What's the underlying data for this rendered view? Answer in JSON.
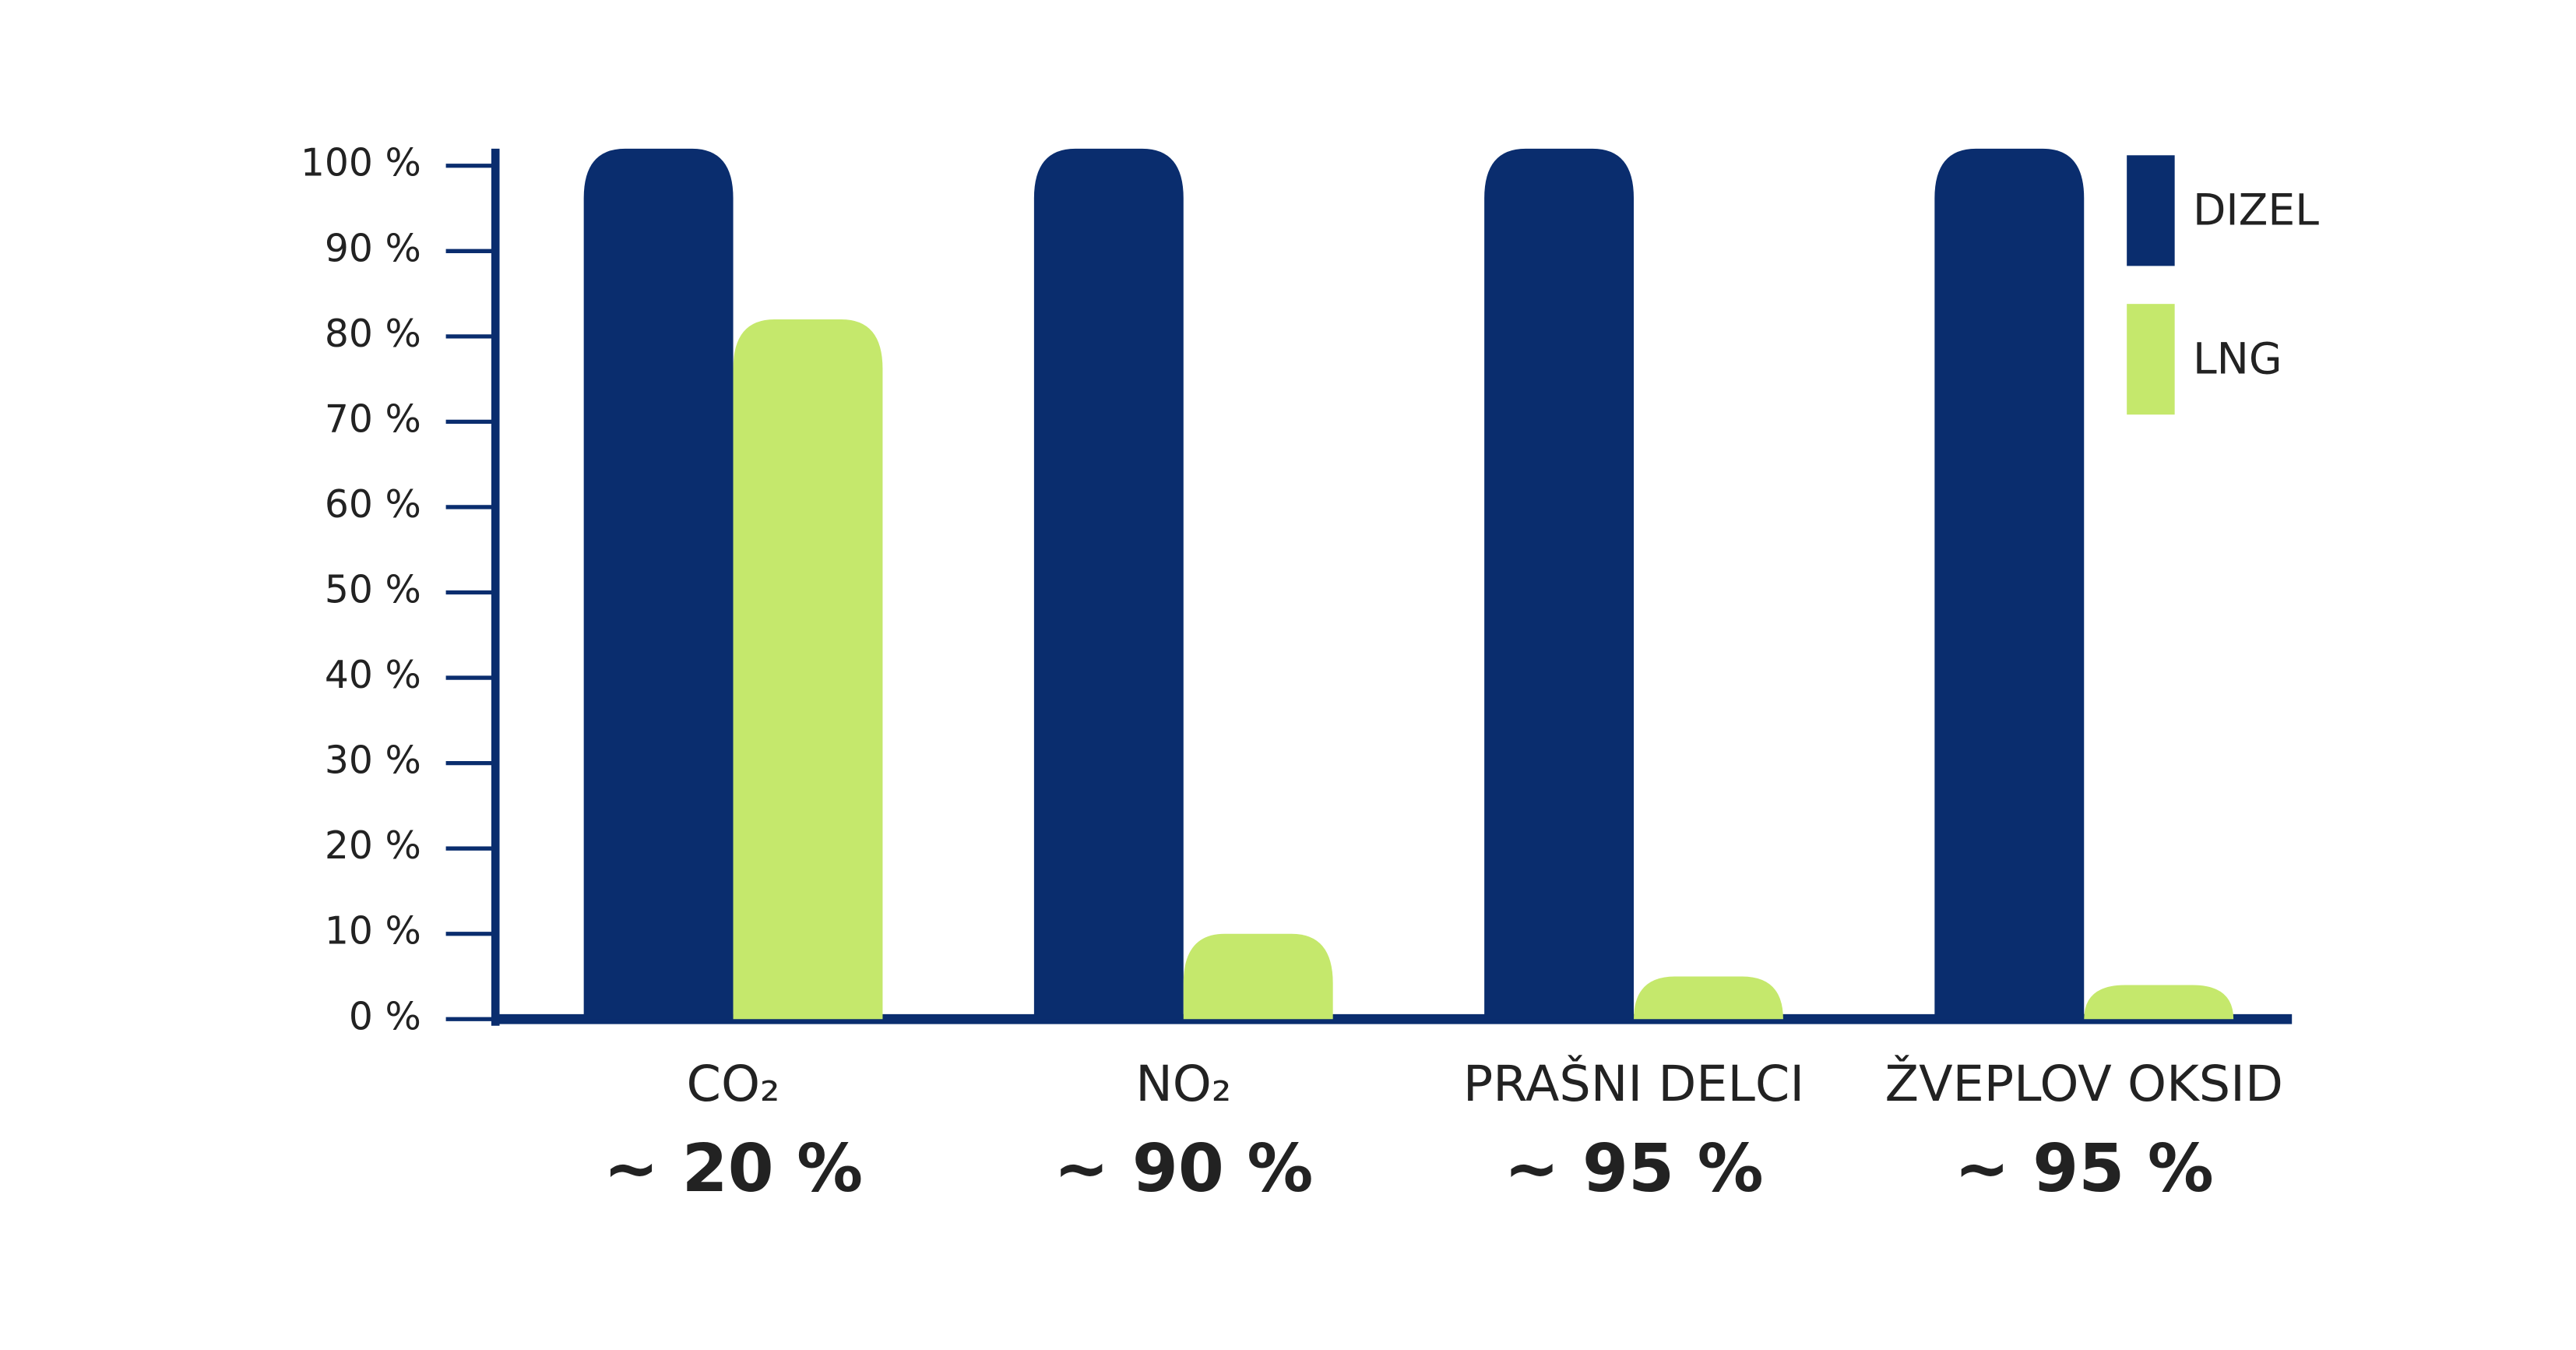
{
  "chart_data": {
    "type": "bar",
    "categories": [
      "CO₂",
      "NO₂",
      "PRAŠNI DELCI",
      "ŽVEPLOV OKSID"
    ],
    "annotations": [
      "~ 20 %",
      "~ 90 %",
      "~ 95 %",
      "~ 95 %"
    ],
    "series": [
      {
        "name": "DIZEL",
        "color": "#0a2d6e",
        "values": [
          102,
          102,
          102,
          102
        ]
      },
      {
        "name": "LNG",
        "color": "#c5e86c",
        "values": [
          82,
          10,
          5,
          4
        ]
      }
    ],
    "ylim": [
      0,
      102
    ],
    "yticks": [
      {
        "value": 0,
        "label": "0 %"
      },
      {
        "value": 10,
        "label": "10 %"
      },
      {
        "value": 20,
        "label": "20 %"
      },
      {
        "value": 30,
        "label": "30 %"
      },
      {
        "value": 40,
        "label": "40 %"
      },
      {
        "value": 50,
        "label": "50 %"
      },
      {
        "value": 60,
        "label": "60 %"
      },
      {
        "value": 70,
        "label": "70 %"
      },
      {
        "value": 80,
        "label": "80 %"
      },
      {
        "value": 90,
        "label": "90 %"
      },
      {
        "value": 100,
        "label": "100 %"
      }
    ],
    "legend": "top-right",
    "axis_color": "#0a2d6e"
  }
}
